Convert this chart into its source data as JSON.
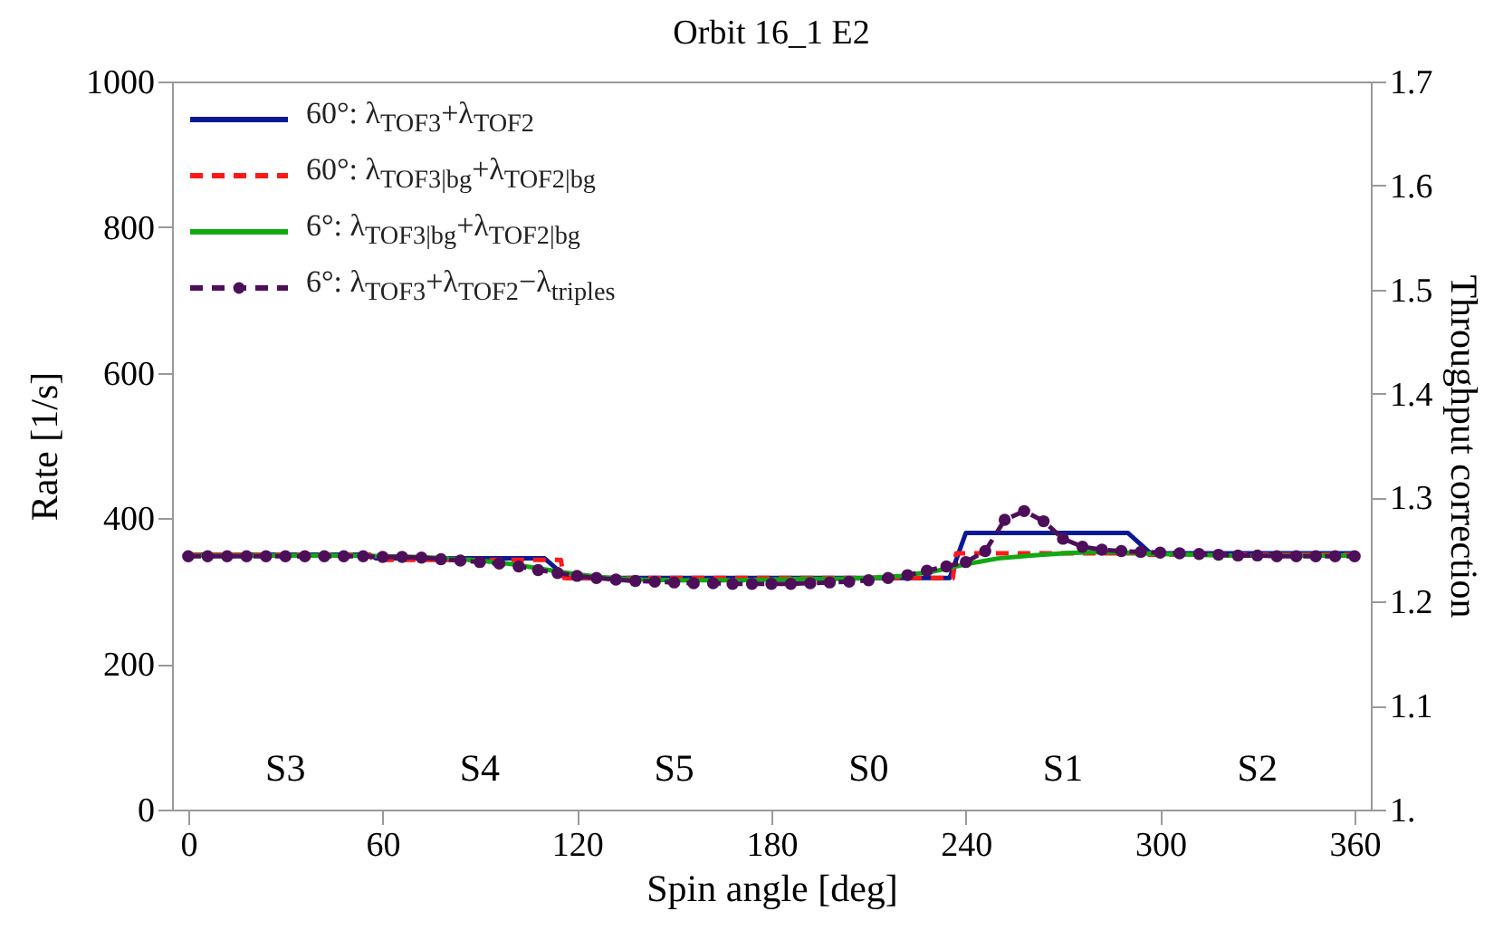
{
  "chart_data": {
    "type": "line",
    "title": "Orbit 16_1 E2",
    "xlabel": "Spin angle [deg]",
    "ylabel": "Rate [1/s]",
    "y2label": "Throughput correction",
    "xlim": [
      -5,
      365
    ],
    "xticks": [
      0,
      60,
      120,
      180,
      240,
      300,
      360
    ],
    "ylim": [
      0,
      1000
    ],
    "yticks": [
      0,
      200,
      400,
      600,
      800,
      1000
    ],
    "y2lim": [
      1,
      1.7
    ],
    "y2ticks": [
      {
        "value": 1,
        "label": "1."
      },
      1.1,
      1.2,
      1.3,
      1.4,
      1.5,
      1.6,
      1.7
    ],
    "grid": false,
    "legend": "top left",
    "annotations": [
      "S3",
      "S4",
      "S5",
      "S0",
      "S1",
      "S2"
    ],
    "series": [
      {
        "name": "60°: λ$_{TOF3}$+λ$_{TOF2}$",
        "color": "#0b1a94",
        "line_style": "solid",
        "x": [
          0,
          56,
          58,
          110,
          117,
          235,
          240,
          290,
          297,
          360
        ],
        "values": [
          350,
          350,
          345,
          345,
          318,
          318,
          380,
          380,
          352,
          352
        ]
      },
      {
        "name": "60°: λ$_{TOF3|bg}$+λ$_{TOF2|bg}$",
        "color": "#ff1a1a",
        "line_style": "dashed",
        "x": [
          0,
          56,
          57,
          115,
          116,
          236,
          237,
          295,
          296,
          360
        ],
        "values": [
          350,
          350,
          343,
          343,
          318,
          318,
          352,
          352,
          350,
          350
        ]
      },
      {
        "name": "6°: λ$_{TOF3|bg}$+λ$_{TOF2|bg}$",
        "color": "#12a812",
        "line_style": "solid",
        "x": [
          0,
          10,
          20,
          30,
          40,
          50,
          60,
          70,
          80,
          90,
          100,
          110,
          120,
          130,
          140,
          150,
          160,
          170,
          180,
          190,
          200,
          210,
          220,
          230,
          240,
          250,
          260,
          270,
          280,
          290,
          300,
          310,
          320,
          330,
          340,
          350,
          360
        ],
        "values": [
          349,
          349,
          349,
          349,
          349,
          349,
          348,
          347,
          345,
          342,
          337,
          330,
          323,
          318,
          316,
          315,
          315,
          315,
          316,
          317,
          317,
          318,
          321,
          327,
          337,
          345,
          349,
          352,
          354,
          353,
          351,
          350,
          349,
          349,
          349,
          349,
          349
        ]
      },
      {
        "name": "6°: λ$_{TOF3}$+λ$_{TOF2}$−λ$_{triples}$",
        "color": "#4e0f5a",
        "line_style": "dashed",
        "marker": "circle",
        "x": [
          0,
          6,
          12,
          18,
          24,
          30,
          36,
          42,
          48,
          54,
          60,
          66,
          72,
          78,
          84,
          90,
          96,
          102,
          108,
          114,
          120,
          126,
          132,
          138,
          144,
          150,
          156,
          162,
          168,
          174,
          180,
          186,
          192,
          198,
          204,
          210,
          216,
          222,
          228,
          234,
          240,
          246,
          252,
          258,
          264,
          270,
          276,
          282,
          288,
          294,
          300,
          306,
          312,
          318,
          324,
          330,
          336,
          342,
          348,
          354,
          360
        ],
        "values": [
          348,
          348,
          348,
          348,
          348,
          348,
          348,
          348,
          348,
          348,
          347,
          347,
          346,
          344,
          342,
          340,
          338,
          334,
          329,
          325,
          321,
          318,
          316,
          314,
          313,
          312,
          311,
          311,
          310,
          310,
          310,
          310,
          311,
          312,
          313,
          315,
          318,
          322,
          328,
          334,
          340,
          355,
          398,
          410,
          396,
          372,
          361,
          357,
          355,
          354,
          353,
          352,
          351,
          350,
          349,
          349,
          348,
          348,
          348,
          348,
          348
        ]
      }
    ]
  }
}
